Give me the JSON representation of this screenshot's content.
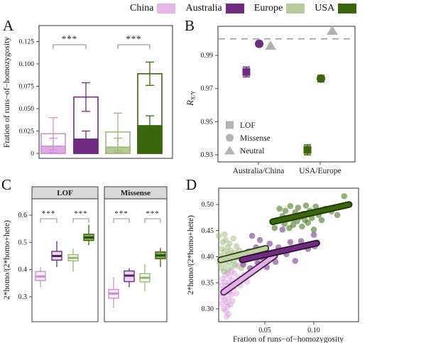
{
  "figure": {
    "panel_labels": {
      "a": "A",
      "b": "B",
      "c": "C",
      "d": "D"
    }
  },
  "legend": {
    "items": [
      {
        "label": "China",
        "color": "#e7b6e9"
      },
      {
        "label": "Australia",
        "color": "#6f2c80"
      },
      {
        "label": "Europe",
        "color": "#b5cc9a"
      },
      {
        "label": "USA",
        "color": "#3a670b"
      }
    ]
  },
  "colors": {
    "china": {
      "main": "#e2a9e5",
      "err": "#cf8fd3",
      "box_fill": "#f9eefb",
      "median": "#d288d6",
      "pt": "#d79ad9",
      "line_fill": "#e5aee8",
      "line_edge": "#41214a"
    },
    "australia": {
      "main": "#6f2c80",
      "err": "#6f2c80",
      "box_fill": "#e9daee",
      "median": "#571f66",
      "pt": "#7c3a8d",
      "line_fill": "#6f2c80",
      "line_edge": "#2a0e33"
    },
    "europe": {
      "main": "#b3cc97",
      "err": "#9cb97b",
      "box_fill": "#f4f7ee",
      "median": "#94b170",
      "pt": "#9cba79",
      "line_fill": "#bcd3a0",
      "line_edge": "#2f3d1c"
    },
    "usa": {
      "main": "#3a670b",
      "err": "#3a670b",
      "box_fill": "#87a95c",
      "median": "#234d00",
      "pt": "#4a7a1f",
      "line_fill": "#3a670b",
      "line_edge": "#1c3503"
    },
    "neutral_gray": "#b3b3b3",
    "dashed_line": "#9e9e9e",
    "panel_border": "#4d4d4d",
    "facet_header_bg": "#d9d9d9"
  },
  "chart_data": [
    {
      "panel": "A",
      "type": "bar",
      "ylabel": "Fration of runs−of−homozygosity",
      "ytick_labels": [
        "0",
        "0.025",
        "0.050",
        "0.075",
        "0.100",
        "0.125"
      ],
      "ytick_values": [
        0,
        0.025,
        0.05,
        0.075,
        0.1,
        0.125
      ],
      "ylim": [
        0,
        0.135
      ],
      "categories": [
        "China",
        "Australia",
        "Europe",
        "USA"
      ],
      "open_bars": {
        "values": [
          0.022,
          0.063,
          0.024,
          0.089
        ],
        "err_high": [
          0.04,
          0.079,
          0.045,
          0.102
        ]
      },
      "filled_bars": {
        "values": [
          0.008,
          0.016,
          0.007,
          0.031
        ],
        "err_high": [
          0.017,
          0.025,
          0.017,
          0.042
        ]
      },
      "significance": [
        {
          "pair": [
            "China",
            "Australia"
          ],
          "label": "***"
        },
        {
          "pair": [
            "Europe",
            "USA"
          ],
          "label": "***"
        }
      ]
    },
    {
      "panel": "B",
      "type": "scatter",
      "ylabel": {
        "base": "R",
        "sub": "X/Y"
      },
      "ytick_labels": [
        "0.93",
        "0.95",
        "0.97",
        "0.99"
      ],
      "ytick_values": [
        0.93,
        0.95,
        0.97,
        0.99
      ],
      "dashed_line_y": 1.0,
      "categories": [
        "Australia/China",
        "USA/Europe"
      ],
      "series": [
        {
          "name": "LOF",
          "marker": "square",
          "values": [
            0.98,
            0.933
          ],
          "err": [
            0.003,
            0.003
          ],
          "color_keys": [
            "australia",
            "usa"
          ]
        },
        {
          "name": "Missense",
          "marker": "circle",
          "values": [
            0.997,
            0.976
          ],
          "err": [
            0.0015,
            0.002
          ],
          "color_keys": [
            "australia",
            "usa"
          ]
        },
        {
          "name": "Neutral",
          "marker": "triangle",
          "values": [
            0.996,
            1.005
          ],
          "err": [
            0,
            0
          ],
          "color_keys": [
            "neutral",
            "neutral"
          ]
        }
      ],
      "legend": [
        {
          "marker": "square",
          "label": "LOF"
        },
        {
          "marker": "circle",
          "label": "Missense"
        },
        {
          "marker": "triangle",
          "label": "Neutral"
        }
      ]
    },
    {
      "panel": "C",
      "type": "boxplot",
      "ylabel": "2*homo/(2*homo+hete)",
      "ytick_labels": [
        "0.3",
        "0.4",
        "0.5",
        "0.6"
      ],
      "ytick_values": [
        0.3,
        0.4,
        0.5,
        0.6
      ],
      "facets": [
        {
          "title": "LOF",
          "boxes": [
            {
              "group": "China",
              "whisker_low": 0.335,
              "q1": 0.36,
              "median": 0.375,
              "q3": 0.393,
              "whisker_high": 0.41
            },
            {
              "group": "Australia",
              "whisker_low": 0.41,
              "q1": 0.435,
              "median": 0.45,
              "q3": 0.467,
              "whisker_high": 0.505
            },
            {
              "group": "Europe",
              "whisker_low": 0.393,
              "q1": 0.432,
              "median": 0.443,
              "q3": 0.455,
              "whisker_high": 0.478
            },
            {
              "group": "USA",
              "whisker_low": 0.49,
              "q1": 0.507,
              "median": 0.518,
              "q3": 0.53,
              "whisker_high": 0.565
            }
          ]
        },
        {
          "title": "Missense",
          "boxes": [
            {
              "group": "China",
              "whisker_low": 0.26,
              "q1": 0.295,
              "median": 0.312,
              "q3": 0.327,
              "whisker_high": 0.372
            },
            {
              "group": "Australia",
              "whisker_low": 0.335,
              "q1": 0.356,
              "median": 0.378,
              "q3": 0.395,
              "whisker_high": 0.405
            },
            {
              "group": "Europe",
              "whisker_low": 0.32,
              "q1": 0.355,
              "median": 0.37,
              "q3": 0.385,
              "whisker_high": 0.42
            },
            {
              "group": "USA",
              "whisker_low": 0.41,
              "q1": 0.44,
              "median": 0.452,
              "q3": 0.465,
              "whisker_high": 0.48
            }
          ]
        }
      ],
      "significance": [
        {
          "pair": [
            "China",
            "Australia"
          ],
          "label": "***"
        },
        {
          "pair": [
            "Europe",
            "USA"
          ],
          "label": "***"
        }
      ]
    },
    {
      "panel": "D",
      "type": "scatter",
      "xlabel": "Fration of runs−of−homozygosity",
      "ylabel": "2*homo/(2*homo+hete)",
      "xtick_labels": [
        "0.05",
        "0.10"
      ],
      "xtick_values": [
        0.05,
        0.1
      ],
      "ytick_labels": [
        "0.30",
        "0.35",
        "0.40",
        "0.45",
        "0.50"
      ],
      "ytick_values": [
        0.3,
        0.35,
        0.4,
        0.45,
        0.5
      ],
      "xlim": [
        0.003,
        0.146
      ],
      "ylim": [
        0.276,
        0.531
      ],
      "series": [
        {
          "name": "China",
          "color_key": "china",
          "opacity": 0.45,
          "line": [
            [
              0.008,
              0.332
            ],
            [
              0.06,
              0.402
            ]
          ],
          "points": [
            [
              0.005,
              0.33
            ],
            [
              0.006,
              0.345
            ],
            [
              0.006,
              0.31
            ],
            [
              0.007,
              0.358
            ],
            [
              0.007,
              0.322
            ],
            [
              0.008,
              0.338
            ],
            [
              0.008,
              0.3
            ],
            [
              0.009,
              0.352
            ],
            [
              0.009,
              0.318
            ],
            [
              0.01,
              0.365
            ],
            [
              0.01,
              0.33
            ],
            [
              0.01,
              0.296
            ],
            [
              0.011,
              0.344
            ],
            [
              0.011,
              0.312
            ],
            [
              0.011,
              0.285
            ],
            [
              0.012,
              0.37
            ],
            [
              0.012,
              0.335
            ],
            [
              0.012,
              0.305
            ],
            [
              0.013,
              0.35
            ],
            [
              0.013,
              0.32
            ],
            [
              0.013,
              0.29
            ],
            [
              0.014,
              0.362
            ],
            [
              0.014,
              0.332
            ],
            [
              0.015,
              0.345
            ],
            [
              0.015,
              0.308
            ],
            [
              0.016,
              0.372
            ],
            [
              0.016,
              0.328
            ],
            [
              0.017,
              0.355
            ],
            [
              0.017,
              0.315
            ],
            [
              0.018,
              0.34
            ],
            [
              0.019,
              0.368
            ],
            [
              0.02,
              0.35
            ],
            [
              0.021,
              0.33
            ],
            [
              0.022,
              0.382
            ],
            [
              0.023,
              0.36
            ],
            [
              0.025,
              0.345
            ],
            [
              0.027,
              0.388
            ],
            [
              0.029,
              0.365
            ],
            [
              0.032,
              0.352
            ],
            [
              0.035,
              0.398
            ],
            [
              0.038,
              0.375
            ],
            [
              0.042,
              0.39
            ],
            [
              0.046,
              0.405
            ]
          ]
        },
        {
          "name": "Europe",
          "color_key": "europe",
          "opacity": 0.5,
          "line": [
            [
              0.005,
              0.394
            ],
            [
              0.051,
              0.416
            ]
          ],
          "points": [
            [
              0.003,
              0.44
            ],
            [
              0.004,
              0.388
            ],
            [
              0.005,
              0.402
            ],
            [
              0.006,
              0.415
            ],
            [
              0.006,
              0.378
            ],
            [
              0.007,
              0.428
            ],
            [
              0.008,
              0.395
            ],
            [
              0.008,
              0.372
            ],
            [
              0.009,
              0.41
            ],
            [
              0.009,
              0.443
            ],
            [
              0.01,
              0.432
            ],
            [
              0.01,
              0.385
            ],
            [
              0.011,
              0.398
            ],
            [
              0.012,
              0.418
            ],
            [
              0.012,
              0.375
            ],
            [
              0.013,
              0.405
            ],
            [
              0.014,
              0.39
            ],
            [
              0.014,
              0.425
            ],
            [
              0.015,
              0.412
            ],
            [
              0.016,
              0.38
            ],
            [
              0.017,
              0.4
            ],
            [
              0.018,
              0.435
            ],
            [
              0.018,
              0.392
            ],
            [
              0.019,
              0.408
            ],
            [
              0.02,
              0.385
            ],
            [
              0.021,
              0.42
            ],
            [
              0.022,
              0.398
            ],
            [
              0.024,
              0.412
            ],
            [
              0.026,
              0.378
            ],
            [
              0.028,
              0.404
            ],
            [
              0.031,
              0.394
            ],
            [
              0.035,
              0.41
            ]
          ]
        },
        {
          "name": "Australia",
          "color_key": "australia",
          "opacity": 0.6,
          "line": [
            [
              0.027,
              0.394
            ],
            [
              0.103,
              0.426
            ]
          ],
          "points": [
            [
              0.028,
              0.385
            ],
            [
              0.031,
              0.395
            ],
            [
              0.033,
              0.41
            ],
            [
              0.035,
              0.378
            ],
            [
              0.037,
              0.44
            ],
            [
              0.039,
              0.403
            ],
            [
              0.041,
              0.418
            ],
            [
              0.043,
              0.388
            ],
            [
              0.045,
              0.432
            ],
            [
              0.047,
              0.398
            ],
            [
              0.049,
              0.412
            ],
            [
              0.052,
              0.38
            ],
            [
              0.055,
              0.425
            ],
            [
              0.058,
              0.408
            ],
            [
              0.061,
              0.39
            ],
            [
              0.064,
              0.418
            ],
            [
              0.068,
              0.452
            ],
            [
              0.072,
              0.405
            ],
            [
              0.076,
              0.428
            ],
            [
              0.081,
              0.392
            ],
            [
              0.087,
              0.43
            ],
            [
              0.094,
              0.415
            ],
            [
              0.1,
              0.442
            ],
            [
              0.101,
              0.42
            ]
          ]
        },
        {
          "name": "USA",
          "color_key": "usa",
          "opacity": 0.6,
          "line": [
            [
              0.058,
              0.467
            ],
            [
              0.136,
              0.5
            ]
          ],
          "points": [
            [
              0.06,
              0.455
            ],
            [
              0.063,
              0.47
            ],
            [
              0.065,
              0.492
            ],
            [
              0.068,
              0.478
            ],
            [
              0.07,
              0.463
            ],
            [
              0.071,
              0.488
            ],
            [
              0.073,
              0.471
            ],
            [
              0.075,
              0.455
            ],
            [
              0.076,
              0.497
            ],
            [
              0.078,
              0.472
            ],
            [
              0.079,
              0.461
            ],
            [
              0.081,
              0.485
            ],
            [
              0.083,
              0.468
            ],
            [
              0.084,
              0.494
            ],
            [
              0.086,
              0.476
            ],
            [
              0.088,
              0.458
            ],
            [
              0.089,
              0.482
            ],
            [
              0.091,
              0.47
            ],
            [
              0.092,
              0.498
            ],
            [
              0.094,
              0.465
            ],
            [
              0.096,
              0.488
            ],
            [
              0.098,
              0.474
            ],
            [
              0.1,
              0.452
            ],
            [
              0.102,
              0.496
            ],
            [
              0.105,
              0.48
            ],
            [
              0.108,
              0.47
            ],
            [
              0.112,
              0.492
            ],
            [
              0.118,
              0.487
            ],
            [
              0.124,
              0.48
            ],
            [
              0.131,
              0.516
            ]
          ]
        }
      ]
    }
  ]
}
